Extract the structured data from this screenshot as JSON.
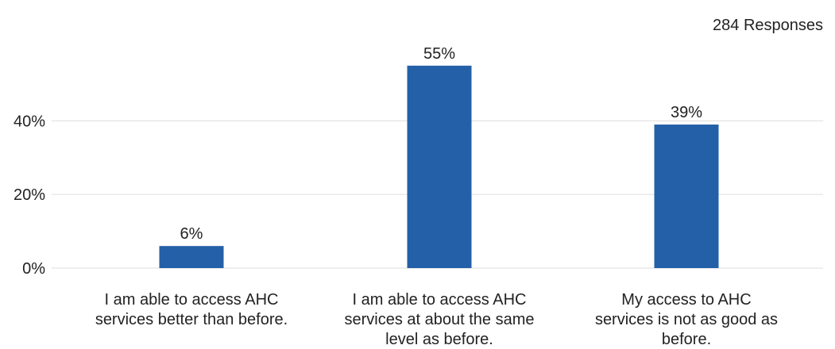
{
  "chart_data": {
    "type": "bar",
    "title": "",
    "xlabel": "",
    "ylabel": "",
    "response_count_label": "284 Responses",
    "categories": [
      "I am able to access AHC services better than before.",
      "I am able to access AHC services at about the same level as before.",
      "My access to AHC services is not as good as before."
    ],
    "category_label_lines": [
      [
        "I am able to access AHC",
        "services better than before."
      ],
      [
        "I am able to access AHC",
        "services at about the same",
        "level as before."
      ],
      [
        "My access to AHC",
        "services is not as good as",
        "before."
      ]
    ],
    "values": [
      6,
      55,
      39
    ],
    "data_labels": [
      "6%",
      "55%",
      "39%"
    ],
    "ylim": [
      0,
      60
    ],
    "yticks": [
      0,
      20,
      40
    ],
    "ytick_labels": [
      "0%",
      "20%",
      "40%"
    ],
    "grid": true,
    "colors": {
      "bar": "#2360a8",
      "grid": "#e3e3e3",
      "text": "#222222"
    }
  }
}
